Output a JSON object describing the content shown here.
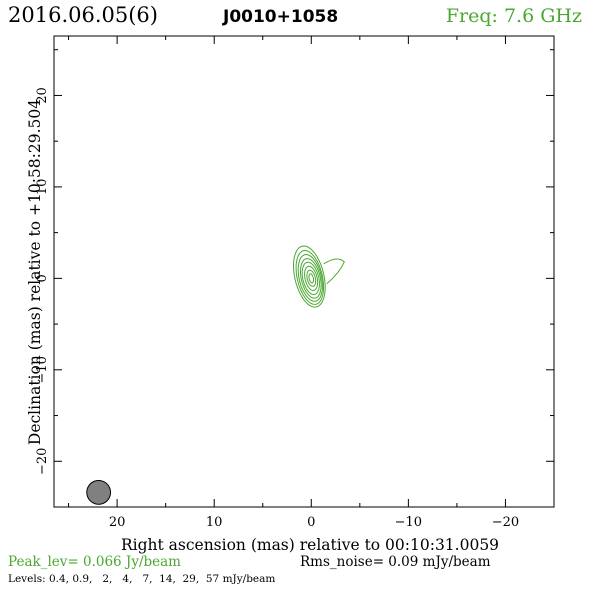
{
  "header": {
    "date": "2016.06.05(6)",
    "source": "J0010+1058",
    "freq": "Freq: 7.6 GHz"
  },
  "footer": {
    "peak": "Peak_lev=  0.066 Jy/beam",
    "rms": "Rms_noise= 0.09 mJy/beam",
    "levels": "Levels: 0.4, 0.9,   2,   4,   7,  14,  29,  57 mJy/beam"
  },
  "colors": {
    "contour": "#4aa832",
    "freq_text": "#4aa832",
    "peak_text": "#4aa832",
    "beam_fill": "#808080",
    "axes": "#000000"
  },
  "chart_data": {
    "type": "contour",
    "xlabel": "Right ascension (mas) relative to 00:10:31.0059",
    "ylabel": "Declination (mas) relative to +10:58:29.504",
    "xlim": [
      26.5,
      -25.0
    ],
    "ylim": [
      -25.0,
      26.5
    ],
    "x_ticks": [
      20,
      10,
      0,
      -10,
      -20
    ],
    "x_tick_labels": [
      "20",
      "10",
      "0",
      "−10",
      "−20"
    ],
    "y_ticks": [
      20,
      10,
      0,
      -10,
      -20
    ],
    "y_tick_labels": [
      "20",
      "10",
      "0",
      "−10",
      "−20"
    ],
    "levels_mJy": [
      0.4,
      0.9,
      2,
      4,
      7,
      14,
      29,
      57
    ],
    "peak_Jy_per_beam": 0.066,
    "rms_mJy_per_beam": 0.09,
    "core_center_mas": [
      0.0,
      0.0
    ],
    "contours": [
      {
        "level": 0.4,
        "dx": 0.2,
        "dy": 0.2,
        "rx": 1.5,
        "ry": 3.4,
        "angle": -12,
        "with_jet": true
      },
      {
        "level": 0.9,
        "dx": 0.15,
        "dy": 0.1,
        "rx": 1.3,
        "ry": 3.0,
        "angle": -12,
        "with_jet": false
      },
      {
        "level": 2,
        "dx": 0.1,
        "dy": 0.05,
        "rx": 1.15,
        "ry": 2.6,
        "angle": -12,
        "with_jet": false
      },
      {
        "level": 4,
        "dx": 0.05,
        "dy": 0.0,
        "rx": 0.98,
        "ry": 2.2,
        "angle": -12,
        "with_jet": false
      },
      {
        "level": 7,
        "dx": 0.05,
        "dy": 0.0,
        "rx": 0.82,
        "ry": 1.8,
        "angle": -12,
        "with_jet": false
      },
      {
        "level": 14,
        "dx": 0.02,
        "dy": 0.0,
        "rx": 0.62,
        "ry": 1.35,
        "angle": -12,
        "with_jet": false
      },
      {
        "level": 29,
        "dx": 0.0,
        "dy": 0.0,
        "rx": 0.42,
        "ry": 0.9,
        "angle": -12,
        "with_jet": false
      },
      {
        "level": 57,
        "dx": 0.0,
        "dy": 0.0,
        "rx": 0.22,
        "ry": 0.5,
        "angle": -12,
        "with_jet": false
      }
    ],
    "jet_tip_mas": [
      3.3,
      1.8
    ],
    "beam": {
      "x": 21.9,
      "y": -23.4,
      "major_mas": 2.6,
      "minor_mas": 1.2,
      "pa_deg": -10
    }
  }
}
